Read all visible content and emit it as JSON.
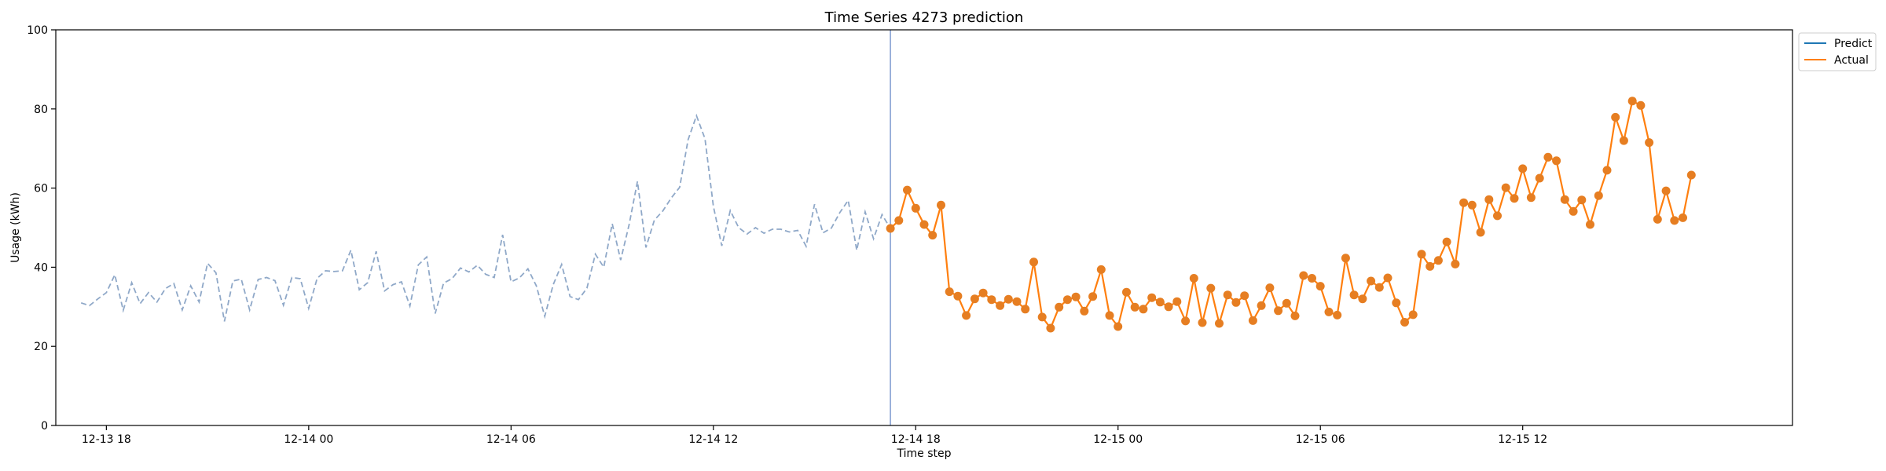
{
  "chart_data": {
    "type": "line",
    "title": "Time Series 4273 prediction",
    "xlabel": "Time step",
    "ylabel": "Usage (kWh)",
    "ylim": [
      0,
      100
    ],
    "yticks": [
      0,
      20,
      40,
      60,
      80,
      100
    ],
    "xticks": [
      {
        "t": 3,
        "label": "12-13 18"
      },
      {
        "t": 27,
        "label": "12-14 00"
      },
      {
        "t": 51,
        "label": "12-14 06"
      },
      {
        "t": 75,
        "label": "12-14 12"
      },
      {
        "t": 99,
        "label": "12-14 18"
      },
      {
        "t": 123,
        "label": "12-15 00"
      },
      {
        "t": 147,
        "label": "12-15 06"
      },
      {
        "t": 171,
        "label": "12-15 12"
      }
    ],
    "legend": {
      "position": "top-right",
      "entries": [
        "Predict",
        "Actual"
      ]
    },
    "split_index": 96,
    "colors": {
      "history": "#8fa8c8",
      "predict": "#1f77b4",
      "actual": "#ff7f0e",
      "marker": "#e67e22",
      "split": "#7f9cd0"
    },
    "series": [
      {
        "role": "history",
        "values": [
          31.0,
          30.3,
          32.0,
          33.6,
          38.1,
          29.1,
          36.1,
          30.8,
          33.6,
          31.2,
          34.6,
          35.9,
          29.2,
          35.3,
          31.2,
          41.0,
          38.6,
          26.3,
          36.5,
          37.0,
          29.2,
          36.9,
          37.4,
          36.6,
          30.4,
          37.4,
          37.1,
          29.6,
          37.2,
          39.1,
          38.9,
          39.1,
          44.3,
          34.3,
          36.1,
          44.0,
          34.0,
          35.6,
          36.3,
          30.2,
          40.6,
          42.6,
          28.3,
          36.0,
          37.1,
          39.8,
          38.8,
          40.5,
          38.2,
          37.4,
          48.2,
          36.3,
          37.3,
          39.6,
          35.3,
          27.6,
          35.6,
          40.7,
          32.6,
          31.8,
          34.7,
          43.3,
          40.0,
          51.0,
          41.8,
          50.7,
          61.7,
          45.0,
          51.9,
          54.2,
          57.5,
          60.2,
          72.2,
          78.3,
          72.5,
          55.4,
          45.4,
          54.3,
          50.0,
          48.4,
          50.0,
          48.6,
          49.6,
          49.6,
          48.9,
          49.3,
          45.3,
          55.9,
          48.7,
          49.9,
          53.8,
          56.9,
          44.3,
          54.0,
          47.2,
          53.3,
          49.8
        ]
      },
      {
        "name": "Actual",
        "role": "actual",
        "values": [
          49.8,
          51.8,
          59.5,
          54.9,
          50.8,
          48.1,
          55.7,
          33.8,
          32.7,
          27.8,
          32.0,
          33.5,
          31.8,
          30.3,
          31.9,
          31.3,
          29.4,
          41.3,
          27.4,
          24.6,
          29.9,
          31.8,
          32.5,
          28.9,
          32.6,
          39.4,
          27.8,
          25.0,
          33.7,
          29.9,
          29.4,
          32.3,
          31.2,
          30.0,
          31.3,
          26.4,
          37.2,
          26.0,
          34.7,
          25.8,
          33.0,
          31.1,
          32.8,
          26.5,
          30.3,
          34.8,
          29.0,
          30.9,
          27.7,
          37.9,
          37.2,
          35.2,
          28.7,
          27.9,
          42.3,
          33.0,
          32.0,
          36.5,
          34.9,
          37.3,
          31.0,
          26.1,
          28.0,
          43.3,
          40.2,
          41.7,
          46.4,
          40.8,
          56.3,
          55.7,
          48.8,
          57.1,
          53.0,
          60.1,
          57.4,
          64.9,
          57.6,
          62.5,
          67.8,
          66.9,
          57.1,
          54.1,
          57.0,
          50.8,
          58.1,
          64.5,
          77.9,
          72.0,
          82.0,
          80.9,
          71.5,
          52.1,
          59.3,
          51.8,
          52.5,
          63.3
        ]
      },
      {
        "name": "Predict",
        "role": "predict",
        "values": []
      }
    ]
  }
}
